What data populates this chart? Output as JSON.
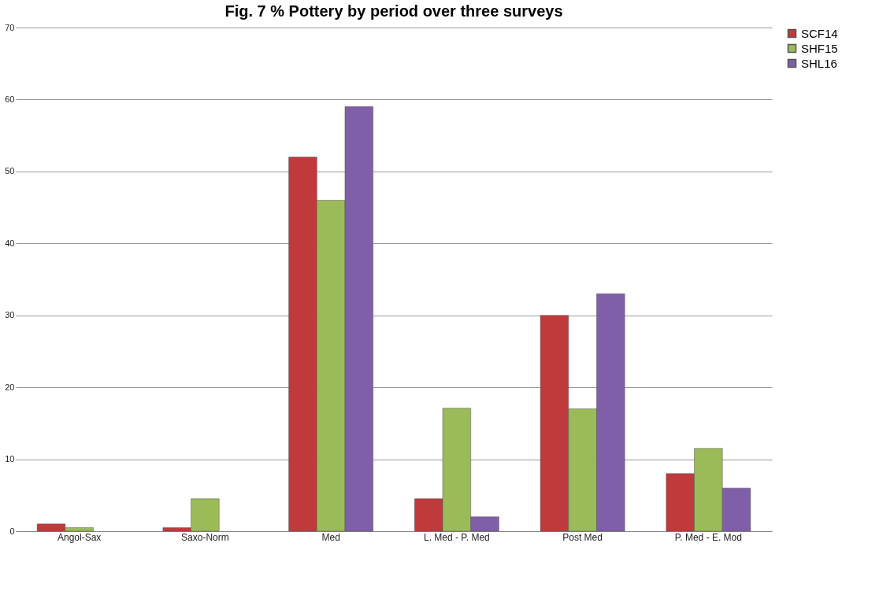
{
  "chart_data": {
    "type": "bar",
    "title": "Fig. 7   % Pottery by period over three surveys",
    "categories": [
      "Angol-Sax",
      "Saxo-Norm",
      "Med",
      "L. Med - P. Med",
      "Post Med",
      "P. Med - E. Mod"
    ],
    "series": [
      {
        "name": "SCF14",
        "color": "#c0393b",
        "values": [
          1.0,
          0.5,
          52,
          4.5,
          30,
          8
        ]
      },
      {
        "name": "SHF15",
        "color": "#9bbb59",
        "values": [
          0.5,
          4.5,
          46,
          17.1,
          17,
          11.5
        ]
      },
      {
        "name": "SHL16",
        "color": "#7f5fa8",
        "values": [
          null,
          null,
          59,
          2,
          33,
          6
        ]
      }
    ],
    "ylim": [
      0,
      70
    ],
    "yticks": [
      0,
      10,
      20,
      30,
      40,
      50,
      60,
      70
    ],
    "grid": "y",
    "legend": "right"
  }
}
